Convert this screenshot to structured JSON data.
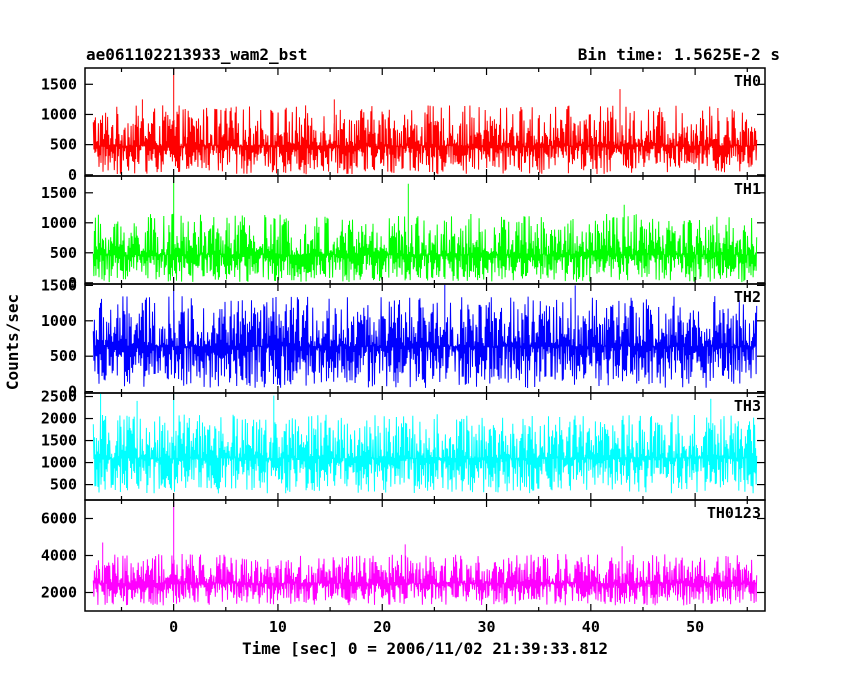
{
  "header": {
    "title": "ae061102213933_wam2_bst",
    "bin_time": "Bin time: 1.5625E-2 s"
  },
  "chart_data": {
    "type": "line",
    "xlabel": "Time [sec] 0 = 2006/11/02 21:39:33.812",
    "ylabel": "Counts/sec",
    "xlim": [
      -8.5,
      56.7
    ],
    "x_data_range": [
      -7.7,
      55.9
    ],
    "x_ticks": [
      0,
      10,
      20,
      30,
      40,
      50
    ],
    "x_tick_labels": [
      "0",
      "10",
      "20",
      "30",
      "40",
      "50"
    ],
    "panels": [
      {
        "name": "TH0",
        "color": "#ff0000",
        "ylim": [
          -20,
          1770
        ],
        "ticks": [
          0,
          500,
          1000,
          1500
        ],
        "tick_labels": [
          "0",
          "500",
          "1000",
          "1500"
        ],
        "baseline": 480,
        "envelope": [
          10,
          1150
        ],
        "peaks": [
          {
            "x": 0.0,
            "y": 1800
          },
          {
            "x": -3.0,
            "y": 1250
          },
          {
            "x": 42.8,
            "y": 1420
          },
          {
            "x": 15.4,
            "y": 1250
          }
        ]
      },
      {
        "name": "TH1",
        "color": "#00ff00",
        "ylim": [
          -20,
          1780
        ],
        "ticks": [
          0,
          500,
          1000,
          1500
        ],
        "tick_labels": [
          "0",
          "500",
          "1000",
          "1500"
        ],
        "baseline": 470,
        "envelope": [
          10,
          1150
        ],
        "peaks": [
          {
            "x": 0.0,
            "y": 1800
          },
          {
            "x": 22.5,
            "y": 1650
          },
          {
            "x": 43.2,
            "y": 1300
          }
        ]
      },
      {
        "name": "TH2",
        "color": "#0000ff",
        "ylim": [
          -20,
          1520
        ],
        "ticks": [
          0,
          500,
          1000,
          1500
        ],
        "tick_labels": [
          "0",
          "500",
          "1000",
          "1500"
        ],
        "baseline": 640,
        "envelope": [
          50,
          1350
        ],
        "peaks": [
          {
            "x": 0.0,
            "y": 1510
          },
          {
            "x": 26.0,
            "y": 1510
          },
          {
            "x": 38.5,
            "y": 1500
          }
        ]
      },
      {
        "name": "TH3",
        "color": "#00ffff",
        "ylim": [
          150,
          2580
        ],
        "ticks": [
          500,
          1000,
          1500,
          2000,
          2500
        ],
        "tick_labels": [
          "500",
          "1000",
          "1500",
          "2000",
          "2500"
        ],
        "baseline": 1100,
        "envelope": [
          300,
          2100
        ],
        "peaks": [
          {
            "x": -7.0,
            "y": 2580
          },
          {
            "x": 0.0,
            "y": 2580
          },
          {
            "x": 9.6,
            "y": 2520
          },
          {
            "x": 51.5,
            "y": 2450
          },
          {
            "x": -3.5,
            "y": 2400
          }
        ]
      },
      {
        "name": "TH0123",
        "color": "#ff00ff",
        "ylim": [
          1000,
          7000
        ],
        "ticks": [
          2000,
          4000,
          6000
        ],
        "tick_labels": [
          "2000",
          "4000",
          "6000"
        ],
        "baseline": 2500,
        "envelope": [
          1300,
          4100
        ],
        "peaks": [
          {
            "x": 0.0,
            "y": 6900
          },
          {
            "x": -6.8,
            "y": 4700
          },
          {
            "x": 22.2,
            "y": 4600
          },
          {
            "x": 43.0,
            "y": 4500
          }
        ]
      }
    ]
  }
}
